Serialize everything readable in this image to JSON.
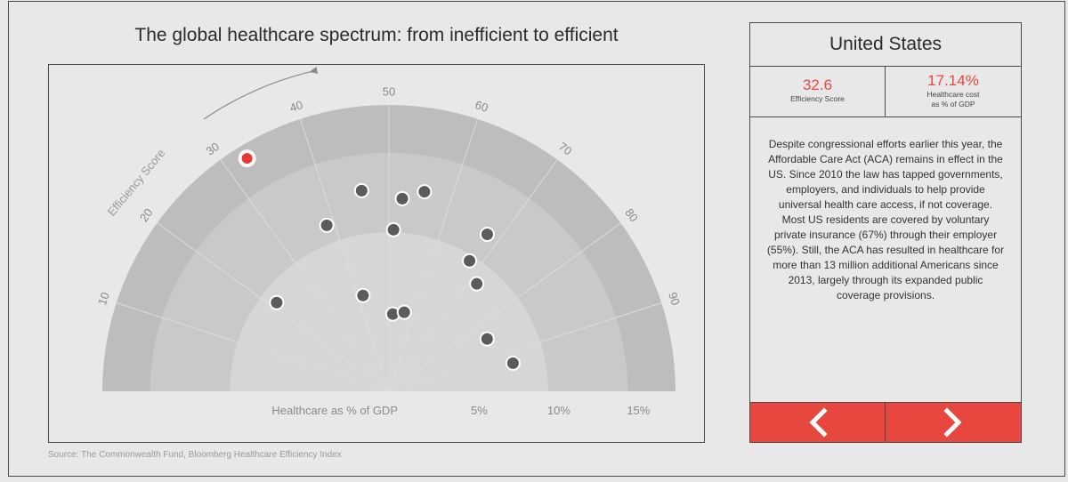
{
  "title": "The global healthcare spectrum: from inefficient to efficient",
  "source": "Source: The Commonwealth Fund, Bloomberg Healthcare Efficiency Index",
  "panel": {
    "country": "United States",
    "efficiency_score": "32.6",
    "efficiency_label": "Efficiency Score",
    "cost_value": "17.14%",
    "cost_label_line1": "Healthcare cost",
    "cost_label_line2": "as % of GDP",
    "description": "Despite congressional efforts earlier this year, the Affordable Care Act (ACA) remains in effect in the US. Since 2010 the law has tapped governments, employers, and individuals to help provide universal health care access, if not coverage. Most US residents are covered by voluntary private insurance (67%) through their employer (55%). Still, the ACA has resulted in healthcare for more than 13 million additional Americans since 2013, largely through its expanded public coverage provisions.",
    "prev_icon": "chevron-left-icon",
    "next_icon": "chevron-right-icon"
  },
  "colors": {
    "accent": "#e8473f",
    "ring_outer": "#bdbdbd",
    "ring_middle": "#c9c9c9",
    "ring_inner": "#d6d6d6",
    "dot": "#5b5b5b",
    "highlight": "#e53935"
  },
  "chart_data": {
    "type": "scatter",
    "title": "The global healthcare spectrum: from inefficient to efficient",
    "angular_axis": {
      "label": "Efficiency Score",
      "range": [
        0,
        100
      ],
      "ticks": [
        10,
        20,
        30,
        40,
        50,
        60,
        70,
        80,
        90
      ]
    },
    "radial_axis": {
      "label": "Healthcare as % of GDP",
      "range": [
        0,
        18
      ],
      "ticks": [
        5,
        10,
        15
      ],
      "tick_labels": [
        "5%",
        "10%",
        "15%"
      ]
    },
    "points": [
      {
        "efficiency": 32.6,
        "gdp": 17.14,
        "highlight": true
      },
      {
        "efficiency": 21.3,
        "gdp": 8.99,
        "highlight": false
      },
      {
        "efficiency": 38.6,
        "gdp": 11.14,
        "highlight": false
      },
      {
        "efficiency": 41.6,
        "gdp": 6.24,
        "highlight": false
      },
      {
        "efficiency": 45.7,
        "gdp": 12.73,
        "highlight": false
      },
      {
        "efficiency": 50.9,
        "gdp": 10.16,
        "highlight": false
      },
      {
        "efficiency": 52.2,
        "gdp": 12.14,
        "highlight": false
      },
      {
        "efficiency": 55.6,
        "gdp": 12.74,
        "highlight": false
      },
      {
        "efficiency": 51.6,
        "gdp": 4.86,
        "highlight": false
      },
      {
        "efficiency": 56.1,
        "gdp": 5.06,
        "highlight": false
      },
      {
        "efficiency": 67.6,
        "gdp": 9.64,
        "highlight": false
      },
      {
        "efficiency": 67.8,
        "gdp": 11.64,
        "highlight": false
      },
      {
        "efficiency": 71.8,
        "gdp": 8.72,
        "highlight": false
      },
      {
        "efficiency": 84.4,
        "gdp": 6.99,
        "highlight": false
      },
      {
        "efficiency": 92.9,
        "gdp": 7.99,
        "highlight": false
      }
    ]
  }
}
